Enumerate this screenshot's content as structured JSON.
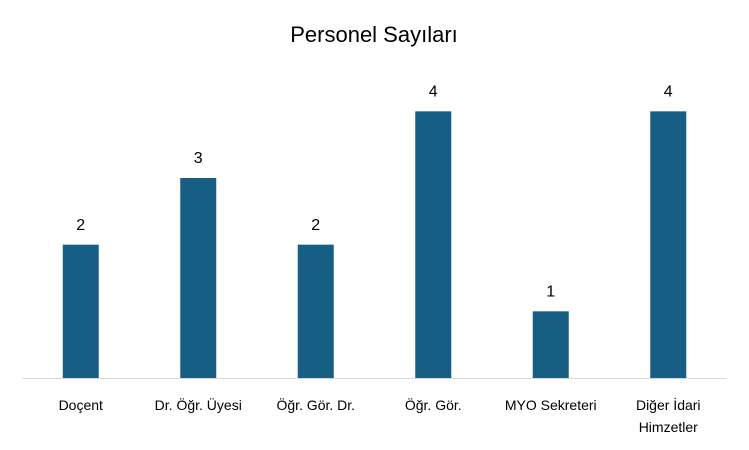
{
  "chart_data": {
    "type": "bar",
    "title": "Personel Sayıları",
    "categories": [
      "Doçent",
      "Dr. Öğr. Üyesi",
      "Öğr. Gör. Dr.",
      "Öğr. Gör.",
      "MYO Sekreteri",
      "Diğer İdari Himzetler"
    ],
    "values": [
      2,
      3,
      2,
      4,
      1,
      4
    ],
    "color": "#165e83",
    "ylim": [
      0,
      4.5
    ],
    "grid": false
  }
}
